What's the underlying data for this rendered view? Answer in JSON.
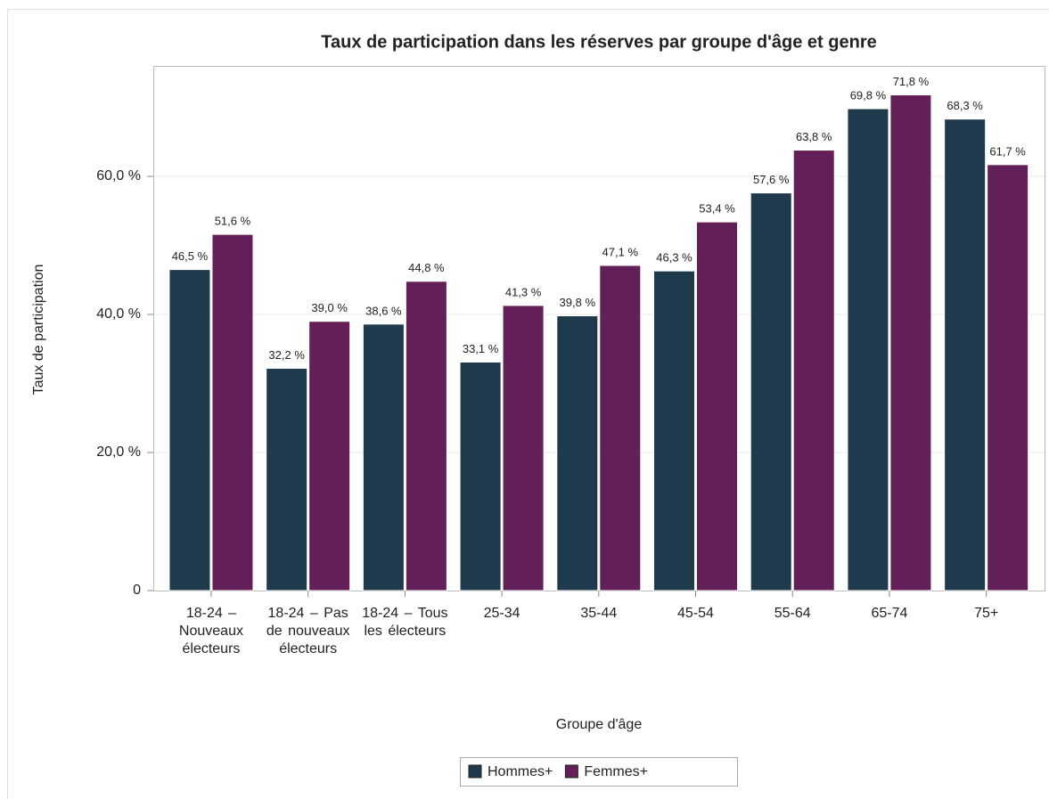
{
  "chart_data": {
    "type": "bar",
    "title": "Taux de participation dans les réserves par groupe d'âge et genre",
    "x_label": "Groupe d'âge",
    "y_label": "Taux de participation",
    "categories": [
      "18-24 – Nouveaux électeurs",
      "18-24 – Pas de nouveaux électeurs",
      "18-24 – Tous les électeurs",
      "25-34",
      "35-44",
      "45-54",
      "55-64",
      "65-74",
      "75+"
    ],
    "series": [
      {
        "name": "Hommes+",
        "color": "#1f3a4d",
        "values": [
          46.5,
          32.2,
          38.6,
          33.1,
          39.8,
          46.3,
          57.6,
          69.8,
          68.3
        ],
        "value_labels": [
          "46,5 %",
          "32,2 %",
          "38,6 %",
          "33,1 %",
          "39,8 %",
          "46,3 %",
          "57,6 %",
          "69,8 %",
          "68,3 %"
        ]
      },
      {
        "name": "Femmes+",
        "color": "#631f57",
        "values": [
          51.6,
          39.0,
          44.8,
          41.3,
          47.1,
          53.4,
          63.8,
          71.8,
          61.7
        ],
        "value_labels": [
          "51,6 %",
          "39,0 %",
          "44,8 %",
          "41,3 %",
          "47,1 %",
          "53,4 %",
          "63,8 %",
          "71,8 %",
          "61,7 %"
        ]
      }
    ],
    "ylim": [
      0,
      76
    ],
    "yticks": [
      0,
      {
        "value": 20,
        "label": "20,0 %"
      },
      {
        "value": 40,
        "label": "40,0 %"
      },
      {
        "value": 60,
        "label": "60,0 %"
      }
    ],
    "grid": true,
    "legend": "bottom"
  }
}
